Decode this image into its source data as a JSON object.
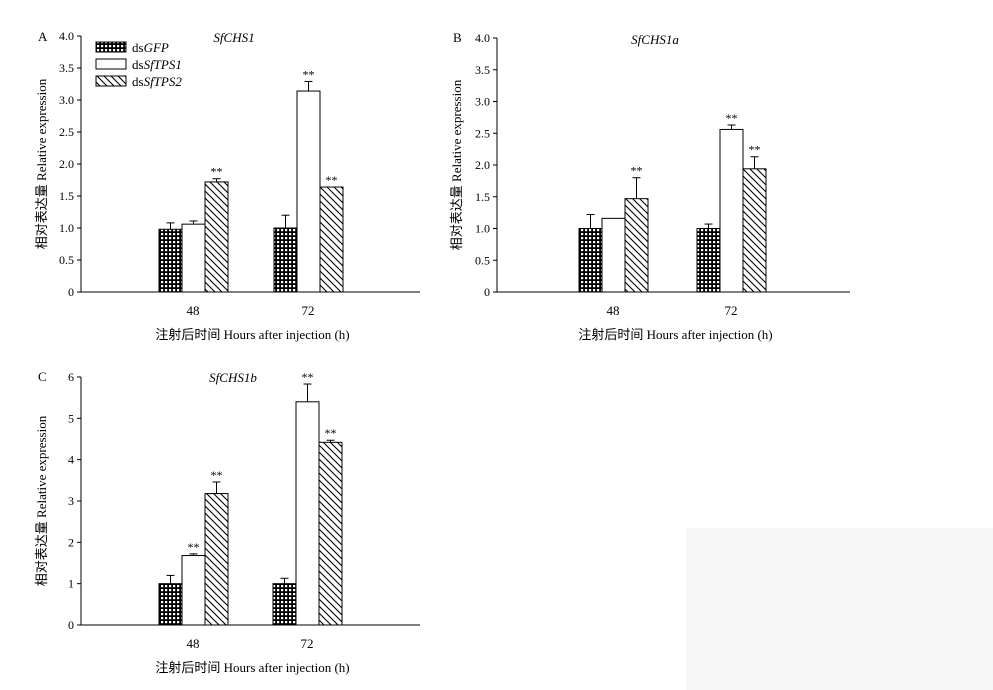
{
  "legend": [
    {
      "prefix": "ds",
      "name": "GFP",
      "pattern": "grid"
    },
    {
      "prefix": "ds",
      "name": "SfTPS1",
      "pattern": "white"
    },
    {
      "prefix": "ds",
      "name": "SfTPS2",
      "pattern": "hatch"
    }
  ],
  "chart_data": [
    {
      "type": "bar",
      "panel": "A",
      "title": "SfCHS1",
      "xlabel": "注射后时间 Hours after injection (h)",
      "ylabel": "相对表达量 Relative expression",
      "categories": [
        "48",
        "72"
      ],
      "ylim": [
        0,
        4.0
      ],
      "yticks": [
        "0",
        "0.5",
        "1.0",
        "1.5",
        "2.0",
        "2.5",
        "3.0",
        "3.5",
        "4.0"
      ],
      "series": [
        {
          "name": "dsGFP",
          "values": [
            0.98,
            1.0
          ],
          "errors": [
            0.1,
            0.2
          ],
          "marks": [
            "",
            ""
          ]
        },
        {
          "name": "dsSfTPS1",
          "values": [
            1.06,
            3.14
          ],
          "errors": [
            0.05,
            0.15
          ],
          "marks": [
            "",
            "**"
          ]
        },
        {
          "name": "dsSfTPS2",
          "values": [
            1.72,
            1.64
          ],
          "errors": [
            0.05,
            0.0
          ],
          "marks": [
            "**",
            "**"
          ]
        }
      ]
    },
    {
      "type": "bar",
      "panel": "B",
      "title": "SfCHS1a",
      "xlabel": "注射后时间 Hours after injection (h)",
      "ylabel": "相对表达量 Relative expression",
      "categories": [
        "48",
        "72"
      ],
      "ylim": [
        0,
        4.0
      ],
      "yticks": [
        "0",
        "0.5",
        "1.0",
        "1.5",
        "2.0",
        "2.5",
        "3.0",
        "3.5",
        "4.0"
      ],
      "series": [
        {
          "name": "dsGFP",
          "values": [
            1.0,
            1.0
          ],
          "errors": [
            0.22,
            0.07
          ],
          "marks": [
            "",
            ""
          ]
        },
        {
          "name": "dsSfTPS1",
          "values": [
            1.16,
            2.56
          ],
          "errors": [
            0.0,
            0.07
          ],
          "marks": [
            "",
            "**"
          ]
        },
        {
          "name": "dsSfTPS2",
          "values": [
            1.47,
            1.94
          ],
          "errors": [
            0.33,
            0.19
          ],
          "marks": [
            "**",
            "**"
          ]
        }
      ]
    },
    {
      "type": "bar",
      "panel": "C",
      "title": "SfCHS1b",
      "xlabel": "注射后时间 Hours after injection (h)",
      "ylabel": "相对表达量 Relative expression",
      "categories": [
        "48",
        "72"
      ],
      "ylim": [
        0,
        6
      ],
      "yticks": [
        "0",
        "1",
        "2",
        "3",
        "4",
        "5",
        "6"
      ],
      "series": [
        {
          "name": "dsGFP",
          "values": [
            1.0,
            1.0
          ],
          "errors": [
            0.2,
            0.13
          ],
          "marks": [
            "",
            ""
          ]
        },
        {
          "name": "dsSfTPS1",
          "values": [
            1.68,
            5.4
          ],
          "errors": [
            0.04,
            0.43
          ],
          "marks": [
            "**",
            "**"
          ]
        },
        {
          "name": "dsSfTPS2",
          "values": [
            3.18,
            4.42
          ],
          "errors": [
            0.28,
            0.05
          ],
          "marks": [
            "**",
            "**"
          ]
        }
      ]
    }
  ]
}
